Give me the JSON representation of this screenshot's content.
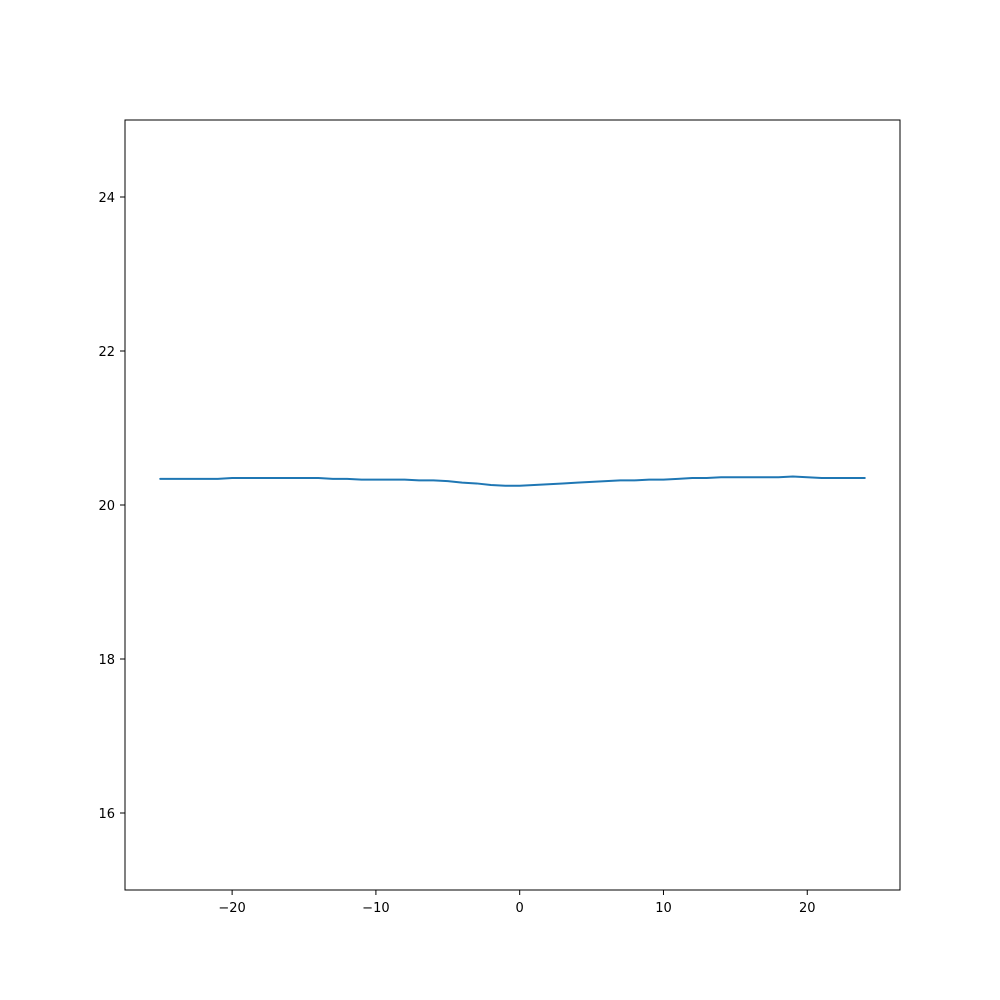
{
  "chart_data": {
    "type": "line",
    "title": "",
    "xlabel": "",
    "ylabel": "",
    "xlim": [
      -27.45,
      26.45
    ],
    "ylim": [
      15,
      25
    ],
    "grid": false,
    "x_ticks": [
      -20,
      -10,
      0,
      10,
      20
    ],
    "x_tick_labels": [
      "−20",
      "−10",
      "0",
      "10",
      "20"
    ],
    "y_ticks": [
      16,
      18,
      20,
      22,
      24
    ],
    "y_tick_labels": [
      "16",
      "18",
      "20",
      "22",
      "24"
    ],
    "series": [
      {
        "color": "#1f77b4",
        "x": [
          -25,
          -24,
          -23,
          -22,
          -21,
          -20,
          -19,
          -18,
          -17,
          -16,
          -15,
          -14,
          -13,
          -12,
          -11,
          -10,
          -9,
          -8,
          -7,
          -6,
          -5,
          -4,
          -3,
          -2,
          -1,
          0,
          1,
          2,
          3,
          4,
          5,
          6,
          7,
          8,
          9,
          10,
          11,
          12,
          13,
          14,
          15,
          16,
          17,
          18,
          19,
          20,
          21,
          22,
          23,
          24
        ],
        "values": [
          20.34,
          20.34,
          20.34,
          20.34,
          20.34,
          20.35,
          20.35,
          20.35,
          20.35,
          20.35,
          20.35,
          20.35,
          20.34,
          20.34,
          20.33,
          20.33,
          20.33,
          20.33,
          20.32,
          20.32,
          20.31,
          20.29,
          20.28,
          20.26,
          20.25,
          20.25,
          20.26,
          20.27,
          20.28,
          20.29,
          20.3,
          20.31,
          20.32,
          20.32,
          20.33,
          20.33,
          20.34,
          20.35,
          20.35,
          20.36,
          20.36,
          20.36,
          20.36,
          20.36,
          20.37,
          20.36,
          20.35,
          20.35,
          20.35,
          20.35
        ]
      }
    ]
  }
}
